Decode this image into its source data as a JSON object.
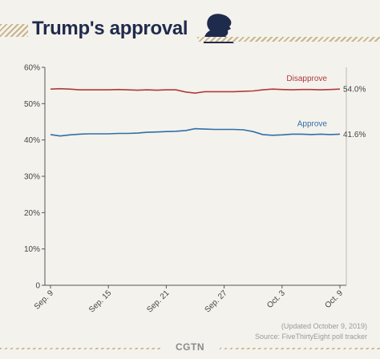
{
  "header": {
    "title": "Trump's approval",
    "icon": "trump-silhouette-icon"
  },
  "chart_data": {
    "type": "line",
    "title": "Trump's approval",
    "x": [
      "Sep. 9",
      "Sep. 10",
      "Sep. 11",
      "Sep. 12",
      "Sep. 13",
      "Sep. 14",
      "Sep. 15",
      "Sep. 16",
      "Sep. 17",
      "Sep. 18",
      "Sep. 19",
      "Sep. 20",
      "Sep. 21",
      "Sep. 22",
      "Sep. 23",
      "Sep. 24",
      "Sep. 25",
      "Sep. 26",
      "Sep. 27",
      "Sep. 28",
      "Sep. 29",
      "Sep. 30",
      "Oct. 1",
      "Oct. 2",
      "Oct. 3",
      "Oct. 4",
      "Oct. 5",
      "Oct. 6",
      "Oct. 7",
      "Oct. 8",
      "Oct. 9"
    ],
    "x_ticks": [
      "Sep. 9",
      "Sep. 15",
      "Sep. 21",
      "Sep. 27",
      "Oct. 3",
      "Oct. 9"
    ],
    "series": [
      {
        "name": "Disapprove",
        "color": "#b03a3a",
        "values": [
          54.0,
          54.1,
          54.0,
          53.8,
          53.8,
          53.8,
          53.8,
          53.9,
          53.8,
          53.7,
          53.8,
          53.7,
          53.8,
          53.8,
          53.2,
          52.9,
          53.3,
          53.3,
          53.3,
          53.3,
          53.4,
          53.5,
          53.8,
          54.0,
          53.9,
          53.8,
          53.9,
          53.9,
          53.8,
          53.9,
          54.0
        ],
        "end_label": "54.0%"
      },
      {
        "name": "Approve",
        "color": "#2f6fa8",
        "values": [
          41.5,
          41.1,
          41.4,
          41.6,
          41.7,
          41.7,
          41.7,
          41.8,
          41.8,
          41.9,
          42.1,
          42.2,
          42.3,
          42.4,
          42.6,
          43.1,
          43.0,
          42.9,
          42.9,
          42.9,
          42.8,
          42.3,
          41.5,
          41.3,
          41.4,
          41.6,
          41.6,
          41.5,
          41.6,
          41.5,
          41.6
        ],
        "end_label": "41.6%"
      }
    ],
    "y_ticks": [
      "60%",
      "50%",
      "40%",
      "30%",
      "20%",
      "10%",
      "0"
    ],
    "ylim": [
      0,
      60
    ],
    "xlabel": "",
    "ylabel": "",
    "grid": false,
    "legend": "inline labels above lines"
  },
  "footer": {
    "updated": "(Updated October 9, 2019)",
    "source": "Source: FiveThirtyEight poll tracker",
    "brand": "CGTN"
  }
}
